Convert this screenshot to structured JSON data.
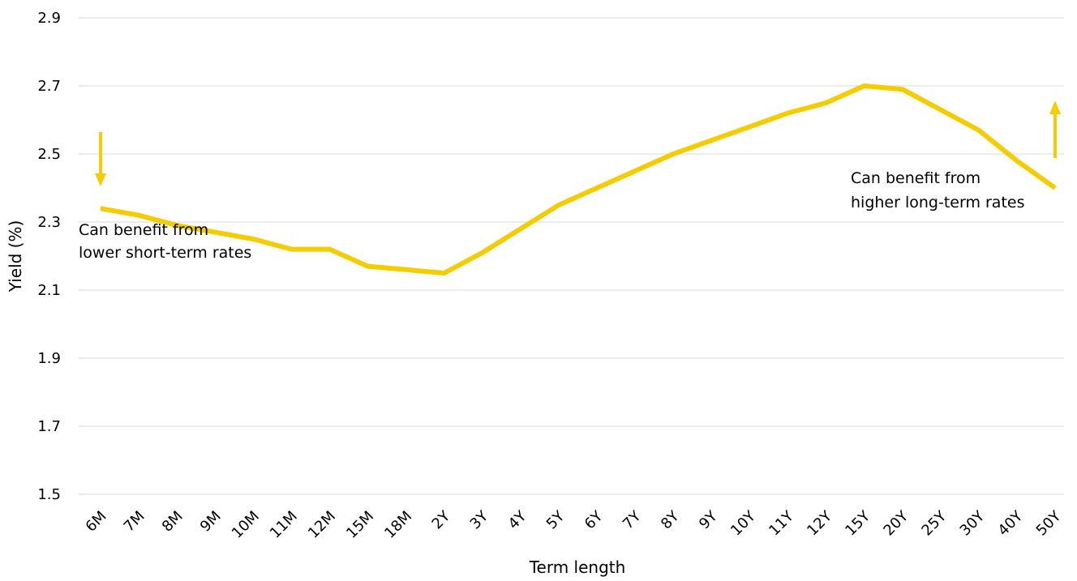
{
  "chart_data": {
    "type": "line",
    "xlabel": "Term length",
    "ylabel": "Yield (%)",
    "ylim": [
      1.5,
      2.9
    ],
    "yticks": [
      "1.5",
      "1.7",
      "1.9",
      "2.1",
      "2.3",
      "2.5",
      "2.7",
      "2.9"
    ],
    "grid": "horizontal",
    "categories": [
      "6M",
      "7M",
      "8M",
      "9M",
      "10M",
      "11M",
      "12M",
      "15M",
      "18M",
      "2Y",
      "3Y",
      "4Y",
      "5Y",
      "6Y",
      "7Y",
      "8Y",
      "9Y",
      "10Y",
      "11Y",
      "12Y",
      "15Y",
      "20Y",
      "25Y",
      "30Y",
      "40Y",
      "50Y"
    ],
    "series": [
      {
        "color": "#f5cc00",
        "values": [
          2.34,
          2.32,
          2.29,
          2.27,
          2.25,
          2.22,
          2.22,
          2.17,
          2.16,
          2.15,
          2.21,
          2.28,
          2.35,
          2.4,
          2.45,
          2.5,
          2.54,
          2.58,
          2.62,
          2.65,
          2.7,
          2.69,
          2.63,
          2.57,
          2.48,
          2.4
        ]
      }
    ],
    "annotations": [
      {
        "lines": [
          "Can benefit from",
          "lower short-term rates"
        ],
        "arrow": "down",
        "category": "6M"
      },
      {
        "lines": [
          "Can benefit from",
          "higher long-term rates"
        ],
        "arrow": "up",
        "category": "50Y"
      }
    ]
  }
}
